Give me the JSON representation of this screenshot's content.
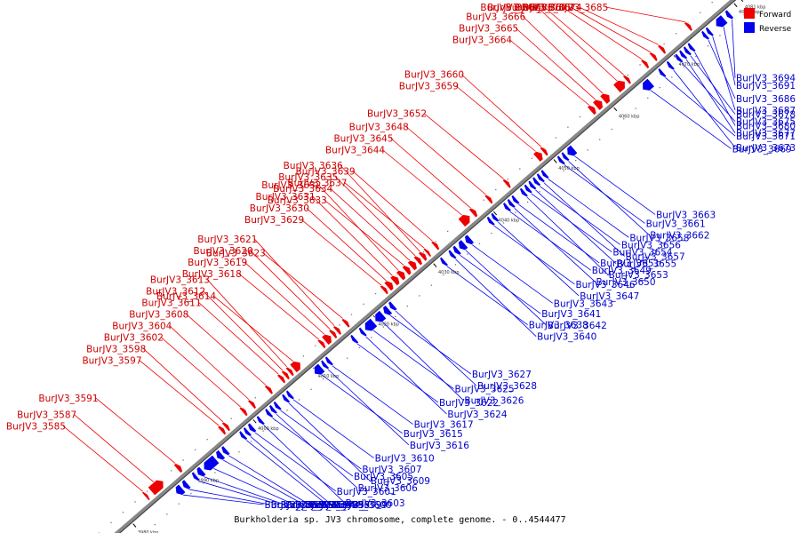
{
  "caption": "Burkholderia sp. JV3 chromosome, complete genome. - 0..4544477",
  "legend": [
    {
      "label": "Forward",
      "color": "#ee0000"
    },
    {
      "label": "Reverse",
      "color": "#0000ee"
    }
  ],
  "colors": {
    "forward": "#ee0000",
    "reverse": "#0000ee",
    "backbone": "#888888"
  },
  "scale": {
    "visible_range_kbp": [
      3976,
      4081
    ],
    "ticks": [
      {
        "kbp": 3980,
        "label": "3980 kbp"
      },
      {
        "kbp": 3990,
        "label": "3990 kbp"
      },
      {
        "kbp": 4000,
        "label": "4000 kbp"
      },
      {
        "kbp": 4010,
        "label": "4010 kbp"
      },
      {
        "kbp": 4020,
        "label": "4020 kbp"
      },
      {
        "kbp": 4030,
        "label": "4030 kbp"
      },
      {
        "kbp": 4040,
        "label": "4040 kbp"
      },
      {
        "kbp": 4050,
        "label": "4050 kbp"
      },
      {
        "kbp": 4060,
        "label": "4060 kbp"
      },
      {
        "kbp": 4070,
        "label": "4070 kbp"
      },
      {
        "kbp": 4080,
        "label": "4080 kbp"
      },
      {
        "kbp": 4081,
        "label": "4081 kbp"
      }
    ]
  },
  "genes": [
    {
      "id": "BurJV3_3585",
      "strand": "+",
      "start_kbp": 3983.4,
      "end_kbp": 3983.8
    },
    {
      "id": "BurJV3_3587",
      "strand": "+",
      "start_kbp": 3984.4,
      "end_kbp": 3986.4
    },
    {
      "id": "BurJV3_3588",
      "strand": "-",
      "start_kbp": 3986.6,
      "end_kbp": 3987.6
    },
    {
      "id": "BurJV3_3590",
      "strand": "-",
      "start_kbp": 3987.8,
      "end_kbp": 3988.5
    },
    {
      "id": "BurJV3_3591",
      "strand": "+",
      "start_kbp": 3988.7,
      "end_kbp": 3989.3
    },
    {
      "id": "BurJV3_3592",
      "strand": "-",
      "start_kbp": 3989.5,
      "end_kbp": 3990.0
    },
    {
      "id": "BurJV3_3593",
      "strand": "-",
      "start_kbp": 3990.2,
      "end_kbp": 3991.0
    },
    {
      "id": "BurJV3_3594",
      "strand": "-",
      "start_kbp": 3991.2,
      "end_kbp": 3993.2
    },
    {
      "id": "BurJV3_3595",
      "strand": "-",
      "start_kbp": 3993.4,
      "end_kbp": 3994.2
    },
    {
      "id": "BurJV3_3596",
      "strand": "-",
      "start_kbp": 3994.4,
      "end_kbp": 3995.0
    },
    {
      "id": "BurJV3_3597",
      "strand": "+",
      "start_kbp": 3996.0,
      "end_kbp": 3996.5
    },
    {
      "id": "BurJV3_3598",
      "strand": "+",
      "start_kbp": 3996.7,
      "end_kbp": 3997.2
    },
    {
      "id": "BurJV3_3599",
      "strand": "-",
      "start_kbp": 3997.4,
      "end_kbp": 3997.9
    },
    {
      "id": "BurJV3_3600",
      "strand": "-",
      "start_kbp": 3998.1,
      "end_kbp": 3998.6
    },
    {
      "id": "BurJV3_3601",
      "strand": "-",
      "start_kbp": 3998.8,
      "end_kbp": 3999.4
    },
    {
      "id": "BurJV3_3602",
      "strand": "+",
      "start_kbp": 3999.6,
      "end_kbp": 4000.1
    },
    {
      "id": "BurJV3_3603",
      "strand": "-",
      "start_kbp": 4000.3,
      "end_kbp": 4000.8
    },
    {
      "id": "BurJV3_3604",
      "strand": "+",
      "start_kbp": 4001.0,
      "end_kbp": 4001.5
    },
    {
      "id": "BurJV3_3605",
      "strand": "-",
      "start_kbp": 4001.7,
      "end_kbp": 4002.2
    },
    {
      "id": "BurJV3_3606",
      "strand": "-",
      "start_kbp": 4002.4,
      "end_kbp": 4002.9
    },
    {
      "id": "BurJV3_3607",
      "strand": "-",
      "start_kbp": 4003.1,
      "end_kbp": 4003.6
    },
    {
      "id": "BurJV3_3608",
      "strand": "+",
      "start_kbp": 4003.8,
      "end_kbp": 4004.3
    },
    {
      "id": "BurJV3_3609",
      "strand": "-",
      "start_kbp": 4004.5,
      "end_kbp": 4005.0
    },
    {
      "id": "BurJV3_3610",
      "strand": "-",
      "start_kbp": 4005.2,
      "end_kbp": 4005.7
    },
    {
      "id": "BurJV3_3611",
      "strand": "+",
      "start_kbp": 4005.9,
      "end_kbp": 4006.4
    },
    {
      "id": "BurJV3_3612",
      "strand": "+",
      "start_kbp": 4006.6,
      "end_kbp": 4007.1
    },
    {
      "id": "BurJV3_3613",
      "strand": "+",
      "start_kbp": 4007.3,
      "end_kbp": 4007.8
    },
    {
      "id": "BurJV3_3614",
      "strand": "+",
      "start_kbp": 4008.0,
      "end_kbp": 4009.2
    },
    {
      "id": "BurJV3_3615",
      "strand": "-",
      "start_kbp": 4009.6,
      "end_kbp": 4010.8
    },
    {
      "id": "BurJV3_3616",
      "strand": "-",
      "start_kbp": 4011.0,
      "end_kbp": 4011.5
    },
    {
      "id": "BurJV3_3617",
      "strand": "-",
      "start_kbp": 4011.7,
      "end_kbp": 4012.2
    },
    {
      "id": "BurJV3_3618",
      "strand": "+",
      "start_kbp": 4012.6,
      "end_kbp": 4013.1
    },
    {
      "id": "BurJV3_3619",
      "strand": "+",
      "start_kbp": 4013.3,
      "end_kbp": 4014.3
    },
    {
      "id": "BurJV3_3620",
      "strand": "+",
      "start_kbp": 4014.5,
      "end_kbp": 4015.0
    },
    {
      "id": "BurJV3_3621",
      "strand": "+",
      "start_kbp": 4015.2,
      "end_kbp": 4015.7
    },
    {
      "id": "BurJV3_3622",
      "strand": "-",
      "start_kbp": 4015.9,
      "end_kbp": 4016.4
    },
    {
      "id": "BurJV3_3623",
      "strand": "+",
      "start_kbp": 4016.6,
      "end_kbp": 4017.1
    },
    {
      "id": "BurJV3_3624",
      "strand": "-",
      "start_kbp": 4017.3,
      "end_kbp": 4017.8
    },
    {
      "id": "BurJV3_3625",
      "strand": "-",
      "start_kbp": 4018.0,
      "end_kbp": 4019.5
    },
    {
      "id": "BurJV3_3626",
      "strand": "-",
      "start_kbp": 4019.7,
      "end_kbp": 4021.0
    },
    {
      "id": "BurJV3_3627",
      "strand": "-",
      "start_kbp": 4021.2,
      "end_kbp": 4022.0
    },
    {
      "id": "BurJV3_3628",
      "strand": "-",
      "start_kbp": 4022.2,
      "end_kbp": 4022.8
    },
    {
      "id": "BurJV3_3629",
      "strand": "+",
      "start_kbp": 4023.0,
      "end_kbp": 4023.5
    },
    {
      "id": "BurJV3_3630",
      "strand": "+",
      "start_kbp": 4023.7,
      "end_kbp": 4024.5
    },
    {
      "id": "BurJV3_3631",
      "strand": "+",
      "start_kbp": 4024.7,
      "end_kbp": 4025.5
    },
    {
      "id": "BurJV3_3632",
      "strand": "+",
      "start_kbp": 4025.7,
      "end_kbp": 4026.5
    },
    {
      "id": "BurJV3_3633",
      "strand": "+",
      "start_kbp": 4026.7,
      "end_kbp": 4027.4
    },
    {
      "id": "BurJV3_3634",
      "strand": "+",
      "start_kbp": 4027.6,
      "end_kbp": 4028.4
    },
    {
      "id": "BurJV3_3635",
      "strand": "+",
      "start_kbp": 4028.6,
      "end_kbp": 4029.2
    },
    {
      "id": "BurJV3_3636",
      "strand": "+",
      "start_kbp": 4029.4,
      "end_kbp": 4030.0
    },
    {
      "id": "BurJV3_3637",
      "strand": "+",
      "start_kbp": 4030.2,
      "end_kbp": 4030.6
    },
    {
      "id": "BurJV3_3638",
      "strand": "-",
      "start_kbp": 4030.8,
      "end_kbp": 4031.3
    },
    {
      "id": "BurJV3_3639",
      "strand": "+",
      "start_kbp": 4031.5,
      "end_kbp": 4032.0
    },
    {
      "id": "BurJV3_3640",
      "strand": "-",
      "start_kbp": 4032.2,
      "end_kbp": 4032.7
    },
    {
      "id": "BurJV3_3641",
      "strand": "-",
      "start_kbp": 4032.9,
      "end_kbp": 4033.5
    },
    {
      "id": "BurJV3_3642",
      "strand": "-",
      "start_kbp": 4033.7,
      "end_kbp": 4034.6
    },
    {
      "id": "BurJV3_3643",
      "strand": "-",
      "start_kbp": 4034.8,
      "end_kbp": 4035.6
    },
    {
      "id": "BurJV3_3644",
      "strand": "+",
      "start_kbp": 4036.0,
      "end_kbp": 4037.4
    },
    {
      "id": "BurJV3_3645",
      "strand": "+",
      "start_kbp": 4037.8,
      "end_kbp": 4038.4
    },
    {
      "id": "BurJV3_3646",
      "strand": "-",
      "start_kbp": 4038.6,
      "end_kbp": 4039.1
    },
    {
      "id": "BurJV3_3647",
      "strand": "-",
      "start_kbp": 4039.3,
      "end_kbp": 4039.8
    },
    {
      "id": "BurJV3_3648",
      "strand": "+",
      "start_kbp": 4040.4,
      "end_kbp": 4040.9
    },
    {
      "id": "BurJV3_3649",
      "strand": "-",
      "start_kbp": 4041.3,
      "end_kbp": 4041.8
    },
    {
      "id": "BurJV3_3650",
      "strand": "-",
      "start_kbp": 4042.0,
      "end_kbp": 4042.5
    },
    {
      "id": "BurJV3_3651",
      "strand": "-",
      "start_kbp": 4042.7,
      "end_kbp": 4043.2
    },
    {
      "id": "BurJV3_3652",
      "strand": "+",
      "start_kbp": 4043.4,
      "end_kbp": 4043.9
    },
    {
      "id": "BurJV3_3653",
      "strand": "-",
      "start_kbp": 4044.1,
      "end_kbp": 4044.6
    },
    {
      "id": "BurJV3_3654",
      "strand": "-",
      "start_kbp": 4044.8,
      "end_kbp": 4045.3
    },
    {
      "id": "BurJV3_3655",
      "strand": "-",
      "start_kbp": 4045.5,
      "end_kbp": 4046.0
    },
    {
      "id": "BurJV3_3656",
      "strand": "-",
      "start_kbp": 4046.2,
      "end_kbp": 4046.7
    },
    {
      "id": "BurJV3_3657",
      "strand": "-",
      "start_kbp": 4046.9,
      "end_kbp": 4047.4
    },
    {
      "id": "BurJV3_3658",
      "strand": "-",
      "start_kbp": 4047.6,
      "end_kbp": 4048.1
    },
    {
      "id": "BurJV3_3659",
      "strand": "+",
      "start_kbp": 4048.5,
      "end_kbp": 4049.4
    },
    {
      "id": "BurJV3_3660",
      "strand": "+",
      "start_kbp": 4049.6,
      "end_kbp": 4050.1
    },
    {
      "id": "BurJV3_3661",
      "strand": "-",
      "start_kbp": 4050.3,
      "end_kbp": 4050.8
    },
    {
      "id": "BurJV3_3662",
      "strand": "-",
      "start_kbp": 4051.0,
      "end_kbp": 4051.5
    },
    {
      "id": "BurJV3_3663",
      "strand": "-",
      "start_kbp": 4051.7,
      "end_kbp": 4052.8
    },
    {
      "id": "BurJV3_3664",
      "strand": "+",
      "start_kbp": 4057.5,
      "end_kbp": 4058.2
    },
    {
      "id": "BurJV3_3665",
      "strand": "+",
      "start_kbp": 4058.4,
      "end_kbp": 4059.4
    },
    {
      "id": "BurJV3_3666",
      "strand": "+",
      "start_kbp": 4059.6,
      "end_kbp": 4060.6
    },
    {
      "id": "BurJV3_3667",
      "strand": "+",
      "start_kbp": 4061.8,
      "end_kbp": 4063.2
    },
    {
      "id": "BurJV3_3668",
      "strand": "+",
      "start_kbp": 4063.4,
      "end_kbp": 4063.9
    },
    {
      "id": "BurJV3_3669",
      "strand": "-",
      "start_kbp": 4064.2,
      "end_kbp": 4065.6
    },
    {
      "id": "BurJV3_3670",
      "strand": "+",
      "start_kbp": 4066.4,
      "end_kbp": 4066.9
    },
    {
      "id": "BurJV3_3671",
      "strand": "-",
      "start_kbp": 4067.1,
      "end_kbp": 4067.6
    },
    {
      "id": "BurJV3_3672",
      "strand": "+",
      "start_kbp": 4067.8,
      "end_kbp": 4068.3
    },
    {
      "id": "BurJV3_3673",
      "strand": "-",
      "start_kbp": 4068.5,
      "end_kbp": 4069.0
    },
    {
      "id": "BurJV3_3674",
      "strand": "+",
      "start_kbp": 4069.2,
      "end_kbp": 4069.7
    },
    {
      "id": "BurJV3_3675",
      "strand": "-",
      "start_kbp": 4069.9,
      "end_kbp": 4070.4
    },
    {
      "id": "BurJV3_3677",
      "strand": "-",
      "start_kbp": 4070.6,
      "end_kbp": 4071.1
    },
    {
      "id": "BurJV3_3678",
      "strand": "-",
      "start_kbp": 4071.3,
      "end_kbp": 4071.8
    },
    {
      "id": "BurJV3_3680",
      "strand": "-",
      "start_kbp": 4072.0,
      "end_kbp": 4072.5
    },
    {
      "id": "BurJV3_3685",
      "strand": "+",
      "start_kbp": 4073.6,
      "end_kbp": 4074.1
    },
    {
      "id": "BurJV3_3686",
      "strand": "-",
      "start_kbp": 4074.3,
      "end_kbp": 4074.8
    },
    {
      "id": "BurJV3_3687",
      "strand": "-",
      "start_kbp": 4075.0,
      "end_kbp": 4075.5
    },
    {
      "id": "BurJV3_3691",
      "strand": "-",
      "start_kbp": 4076.4,
      "end_kbp": 4077.8
    },
    {
      "id": "BurJV3_3694",
      "strand": "-",
      "start_kbp": 4078.2,
      "end_kbp": 4078.8
    }
  ]
}
